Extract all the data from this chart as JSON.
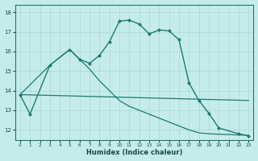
{
  "xlabel": "Humidex (Indice chaleur)",
  "bg_color": "#c5eceb",
  "grid_color": "#a8d8d5",
  "line_color": "#1e7a70",
  "ylim": [
    11.5,
    18.4
  ],
  "xlim": [
    -0.5,
    23.5
  ],
  "yticks": [
    12,
    13,
    14,
    15,
    16,
    17,
    18
  ],
  "xticks": [
    0,
    1,
    2,
    3,
    4,
    5,
    6,
    7,
    8,
    9,
    10,
    11,
    12,
    13,
    14,
    15,
    16,
    17,
    18,
    19,
    20,
    21,
    22,
    23
  ],
  "line1_x": [
    0,
    1,
    3,
    5,
    6,
    7,
    8,
    9,
    10,
    11,
    12,
    13,
    14,
    15,
    16,
    17,
    18,
    19,
    20,
    22,
    23
  ],
  "line1_y": [
    13.8,
    12.8,
    15.3,
    16.1,
    15.6,
    15.4,
    15.8,
    16.5,
    17.55,
    17.6,
    17.4,
    16.9,
    17.1,
    17.05,
    16.6,
    14.4,
    13.5,
    12.85,
    12.1,
    11.8,
    11.7
  ],
  "line2_x": [
    0,
    23
  ],
  "line2_y": [
    13.8,
    13.5
  ],
  "line3_x": [
    0,
    3,
    5,
    6,
    7,
    8,
    9,
    10,
    11,
    12,
    13,
    14,
    15,
    16,
    17,
    18,
    19,
    20,
    21,
    22,
    23
  ],
  "line3_y": [
    13.8,
    15.3,
    16.1,
    15.6,
    15.1,
    14.5,
    14.0,
    13.5,
    13.2,
    13.0,
    12.8,
    12.6,
    12.4,
    12.2,
    12.0,
    11.85,
    11.8,
    11.78,
    11.76,
    11.74,
    11.72
  ]
}
